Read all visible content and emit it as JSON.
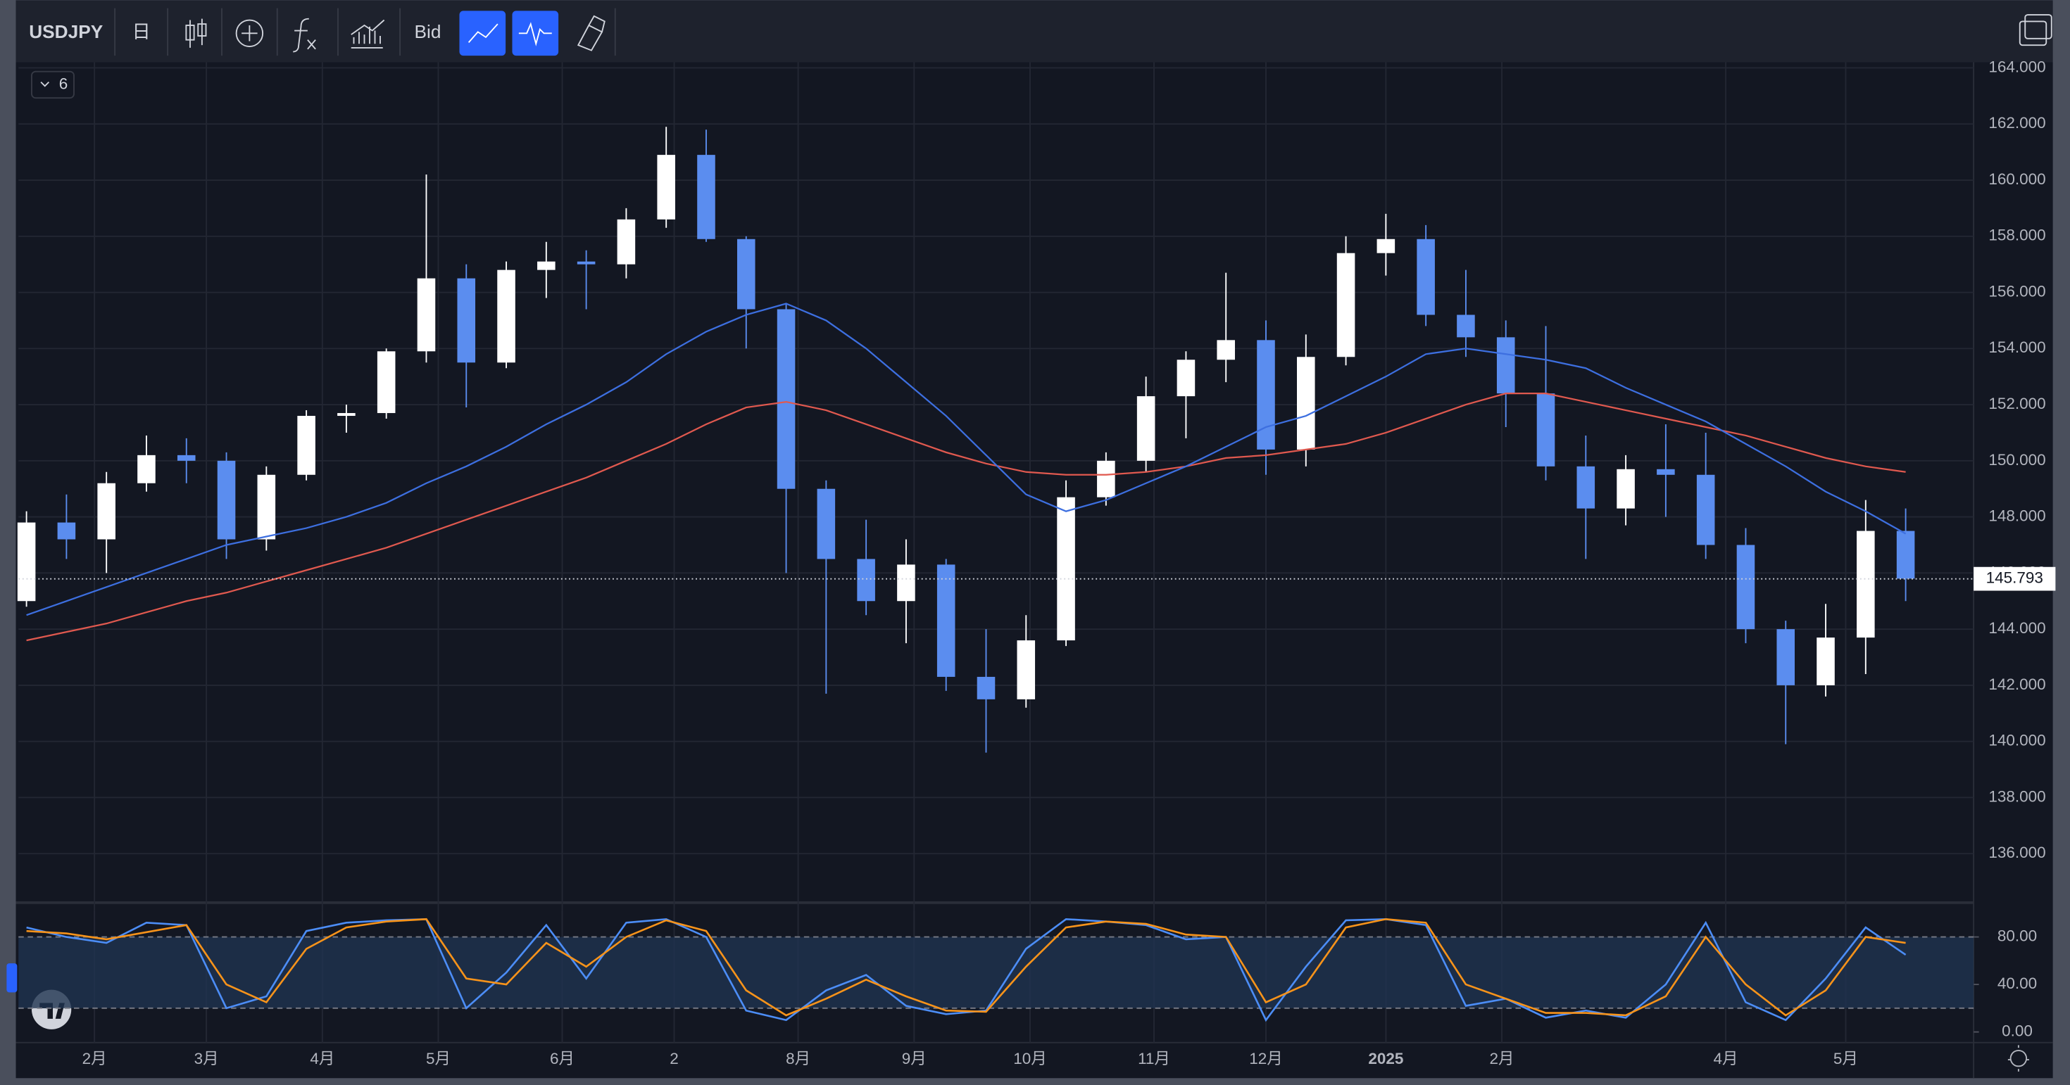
{
  "toolbar": {
    "symbol": "USDJPY",
    "interval": "日",
    "price_source": "Bid"
  },
  "legend_toggle": 6,
  "chart_data": [
    {
      "type": "candlestick",
      "up_color": "#ffffff",
      "down_color": "#5b8def",
      "grid": true,
      "open": [
        145.0,
        147.8,
        147.2,
        149.2,
        150.2,
        150.0,
        147.2,
        149.5,
        151.6,
        151.7,
        153.9,
        156.5,
        153.5,
        156.8,
        157.1,
        157.0,
        158.6,
        160.9,
        157.9,
        155.4,
        149.0,
        146.5,
        145.0,
        146.3,
        142.3,
        141.5,
        143.6,
        148.7,
        150.0,
        152.3,
        153.6,
        154.3,
        150.4,
        153.7,
        157.4,
        157.9,
        155.2,
        154.4,
        152.4,
        149.8,
        148.3,
        149.7,
        149.5,
        147.0,
        144.0,
        142.0,
        143.7,
        147.5
      ],
      "high": [
        148.2,
        148.8,
        149.6,
        150.9,
        150.8,
        150.3,
        149.8,
        151.8,
        152.0,
        154.0,
        160.2,
        157.0,
        157.1,
        157.8,
        157.5,
        159.0,
        161.9,
        161.8,
        158.0,
        155.6,
        149.3,
        147.9,
        147.2,
        146.5,
        144.0,
        144.5,
        149.3,
        150.3,
        153.0,
        153.9,
        156.7,
        155.0,
        154.5,
        158.0,
        158.8,
        158.4,
        156.8,
        155.0,
        154.8,
        150.9,
        150.2,
        151.3,
        151.0,
        147.6,
        144.3,
        144.9,
        148.6,
        148.3
      ],
      "low": [
        144.8,
        146.5,
        146.0,
        148.9,
        149.2,
        146.5,
        146.8,
        149.3,
        151.0,
        151.5,
        153.5,
        151.9,
        153.3,
        155.8,
        155.4,
        156.5,
        158.3,
        157.8,
        154.0,
        146.0,
        141.7,
        144.5,
        143.5,
        141.8,
        139.6,
        141.2,
        143.4,
        148.4,
        149.6,
        150.8,
        152.8,
        149.5,
        149.8,
        153.4,
        156.6,
        154.8,
        153.7,
        151.2,
        149.3,
        146.5,
        147.7,
        148.0,
        146.5,
        143.5,
        139.9,
        141.6,
        142.4,
        145.0
      ],
      "close": [
        147.8,
        147.2,
        149.2,
        150.2,
        150.0,
        147.2,
        149.5,
        151.6,
        151.7,
        153.9,
        156.5,
        153.5,
        156.8,
        157.1,
        157.0,
        158.6,
        160.9,
        157.9,
        155.4,
        149.0,
        146.5,
        145.0,
        146.3,
        142.3,
        141.5,
        143.6,
        148.7,
        150.0,
        152.3,
        153.6,
        154.3,
        150.4,
        153.7,
        157.4,
        157.9,
        155.2,
        154.4,
        152.4,
        149.8,
        148.3,
        149.7,
        149.5,
        147.0,
        144.0,
        142.0,
        143.7,
        147.5,
        145.8
      ],
      "overlays": [
        {
          "color": "#e0594f",
          "values": [
            143.6,
            143.9,
            144.2,
            144.6,
            145.0,
            145.3,
            145.7,
            146.1,
            146.5,
            146.9,
            147.4,
            147.9,
            148.4,
            148.9,
            149.4,
            150.0,
            150.6,
            151.3,
            151.9,
            152.1,
            151.8,
            151.3,
            150.8,
            150.3,
            149.9,
            149.6,
            149.5,
            149.5,
            149.6,
            149.8,
            150.1,
            150.2,
            150.4,
            150.6,
            151.0,
            151.5,
            152.0,
            152.4,
            152.4,
            152.1,
            151.8,
            151.5,
            151.2,
            150.9,
            150.5,
            150.1,
            149.8,
            149.6
          ]
        },
        {
          "color": "#3d6fe0",
          "values": [
            144.5,
            145.0,
            145.5,
            146.0,
            146.5,
            147.0,
            147.3,
            147.6,
            148.0,
            148.5,
            149.2,
            149.8,
            150.5,
            151.3,
            152.0,
            152.8,
            153.8,
            154.6,
            155.2,
            155.6,
            155.0,
            154.0,
            152.8,
            151.6,
            150.2,
            148.8,
            148.2,
            148.6,
            149.2,
            149.8,
            150.5,
            151.2,
            151.6,
            152.3,
            153.0,
            153.8,
            154.0,
            153.8,
            153.6,
            153.3,
            152.6,
            152.0,
            151.4,
            150.6,
            149.8,
            148.9,
            148.2,
            147.4
          ]
        }
      ],
      "last_price": 145.793,
      "xlim": [
        -0.2,
        48.7
      ],
      "xticks": [
        {
          "value": 1.7,
          "label": "2月"
        },
        {
          "value": 4.5,
          "label": "3月"
        },
        {
          "value": 7.4,
          "label": "4月"
        },
        {
          "value": 10.3,
          "label": "5月"
        },
        {
          "value": 13.4,
          "label": "6月"
        },
        {
          "value": 16.2,
          "label": "2"
        },
        {
          "value": 19.3,
          "label": "8月"
        },
        {
          "value": 22.2,
          "label": "9月"
        },
        {
          "value": 25.1,
          "label": "10月"
        },
        {
          "value": 28.2,
          "label": "11月"
        },
        {
          "value": 31.0,
          "label": "12月"
        },
        {
          "value": 34.0,
          "label": "2025"
        },
        {
          "value": 36.9,
          "label": "2月"
        },
        {
          "value": 42.5,
          "label": "4月"
        },
        {
          "value": 45.5,
          "label": "5月"
        }
      ],
      "ylim": [
        134.3,
        164.2
      ],
      "yticks": [
        {
          "value": 136,
          "label": "136.000"
        },
        {
          "value": 138,
          "label": "138.000"
        },
        {
          "value": 140,
          "label": "140.000"
        },
        {
          "value": 142,
          "label": "142.000"
        },
        {
          "value": 144,
          "label": "144.000"
        },
        {
          "value": 146,
          "label": "146.000"
        },
        {
          "value": 148,
          "label": "148.000"
        },
        {
          "value": 150,
          "label": "150.000"
        },
        {
          "value": 152,
          "label": "152.000"
        },
        {
          "value": 154,
          "label": "154.000"
        },
        {
          "value": 156,
          "label": "156.000"
        },
        {
          "value": 158,
          "label": "158.000"
        },
        {
          "value": 160,
          "label": "160.000"
        },
        {
          "value": 162,
          "label": "162.000"
        },
        {
          "value": 164,
          "label": "164.000"
        }
      ]
    },
    {
      "type": "line",
      "grid": true,
      "series": [
        {
          "color": "#4c8df6",
          "values": [
            88,
            80,
            75,
            92,
            90,
            20,
            30,
            85,
            92,
            94,
            95,
            20,
            50,
            90,
            45,
            92,
            95,
            80,
            18,
            10,
            35,
            48,
            22,
            15,
            18,
            70,
            95,
            93,
            90,
            78,
            80,
            10,
            55,
            94,
            95,
            90,
            22,
            28,
            12,
            18,
            12,
            40,
            92,
            25,
            10,
            45,
            88,
            65
          ]
        },
        {
          "color": "#f7931a",
          "values": [
            85,
            83,
            78,
            84,
            90,
            40,
            25,
            70,
            88,
            93,
            95,
            45,
            40,
            75,
            55,
            80,
            94,
            85,
            35,
            14,
            28,
            44,
            30,
            18,
            17,
            55,
            88,
            93,
            91,
            82,
            80,
            25,
            40,
            88,
            95,
            92,
            40,
            28,
            16,
            16,
            14,
            30,
            80,
            40,
            14,
            35,
            80,
            75
          ]
        }
      ],
      "bands": [
        20,
        80
      ],
      "xlim": [
        -0.2,
        48.7
      ],
      "ylim": [
        -8.9,
        102.2
      ],
      "yticks": [
        {
          "value": 0,
          "label": "0.00"
        },
        {
          "value": 40,
          "label": "40.00"
        },
        {
          "value": 80,
          "label": "80.00"
        }
      ]
    }
  ]
}
